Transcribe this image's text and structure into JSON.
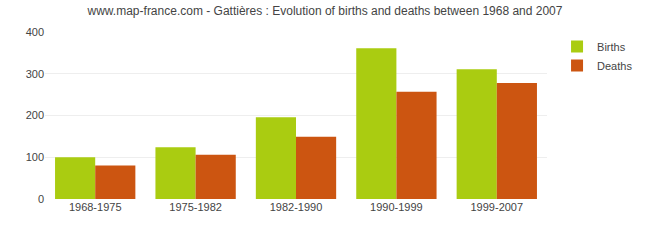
{
  "chart_data": {
    "type": "bar",
    "title": "www.map-france.com - Gattières : Evolution of births and deaths between 1968 and 2007",
    "categories": [
      "1968-1975",
      "1975-1982",
      "1982-1990",
      "1990-1999",
      "1999-2007"
    ],
    "series": [
      {
        "name": "Births",
        "color": "#aacc11",
        "values": [
          100,
          124,
          196,
          361,
          311
        ]
      },
      {
        "name": "Deaths",
        "color": "#cc5511",
        "values": [
          80,
          106,
          149,
          257,
          278
        ]
      }
    ],
    "ylim": [
      0,
      400
    ],
    "yticks": [
      0,
      100,
      200,
      300,
      400
    ],
    "grid": true,
    "legend": "upper right"
  }
}
